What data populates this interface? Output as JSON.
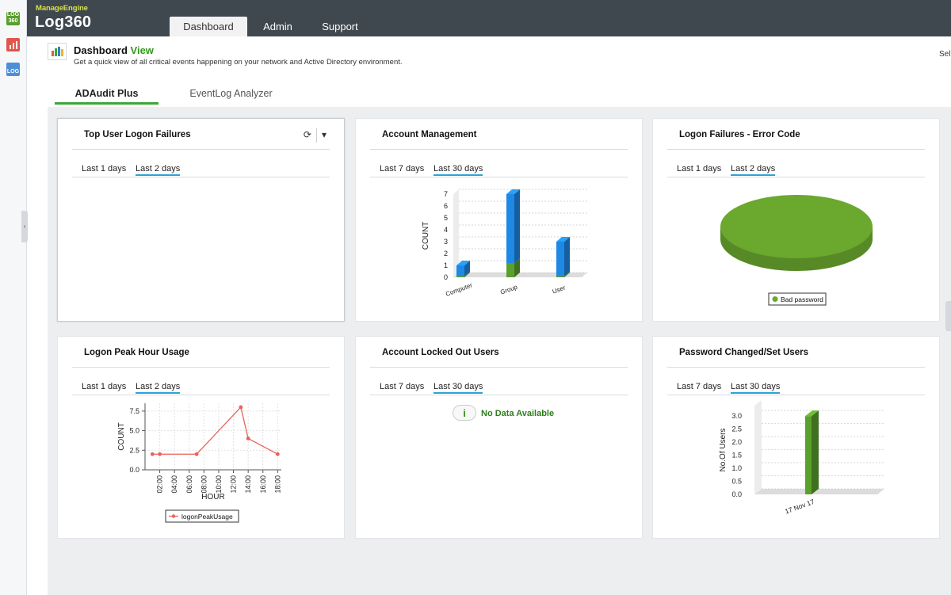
{
  "rail": {
    "items": [
      {
        "icon": "log360-icon",
        "label": "LOG 360"
      },
      {
        "icon": "report-icon",
        "label": ""
      },
      {
        "icon": "log-file-icon",
        "label": "LOG"
      }
    ]
  },
  "header": {
    "brand_small": "ManageEngine",
    "brand_big": "Log360",
    "tabs": [
      {
        "label": "Dashboard",
        "active": true
      },
      {
        "label": "Admin",
        "active": false
      },
      {
        "label": "Support",
        "active": false
      }
    ]
  },
  "page": {
    "title": "Dashboard",
    "title_accent": "View",
    "subtitle": "Get a quick view of all critical events happening on your network and Active Directory environment.",
    "right_cut": "Sel"
  },
  "subtabs": [
    {
      "label": "ADAudit Plus",
      "active": true
    },
    {
      "label": "EventLog Analyzer",
      "active": false
    }
  ],
  "colors": {
    "topbar": "#3f484f",
    "accent_green": "#3aa835",
    "link_blue": "#29a4d8",
    "bar_blue": "#1e88e5",
    "bar_green": "#5aa02c",
    "line_red": "#e8625b",
    "pie_green": "#6aa82e"
  },
  "widgets": {
    "logon_failures": {
      "title": "Top User Logon Failures",
      "periods": [
        "Last 1 days",
        "Last 2 days"
      ],
      "active_period": 1,
      "refresh_icon": "refresh-icon",
      "menu_icon": "caret-down-icon"
    },
    "account_mgmt": {
      "title": "Account Management",
      "periods": [
        "Last 7 days",
        "Last 30 days"
      ],
      "active_period": 1
    },
    "error_code": {
      "title": "Logon Failures - Error Code",
      "periods": [
        "Last 1 days",
        "Last 2 days"
      ],
      "active_period": 1
    },
    "peak_hour": {
      "title": "Logon Peak Hour Usage",
      "periods": [
        "Last 1 days",
        "Last 2 days"
      ],
      "active_period": 1
    },
    "locked_out": {
      "title": "Account Locked Out Users",
      "periods": [
        "Last 7 days",
        "Last 30 days"
      ],
      "active_period": 1,
      "no_data_icon": "i",
      "no_data_text": "No Data Available"
    },
    "pwd_changed": {
      "title": "Password Changed/Set Users",
      "periods": [
        "Last 7 days",
        "Last 30 days"
      ],
      "active_period": 1
    }
  },
  "chart_data": [
    {
      "id": "account_mgmt",
      "type": "bar",
      "stacked": true,
      "categories": [
        "Computer",
        "Group",
        "User"
      ],
      "series": [
        {
          "values": [
            0.1,
            1.2,
            0.1
          ],
          "color": "#5aa02c"
        },
        {
          "values": [
            0.9,
            5.8,
            2.9
          ],
          "color": "#1e88e5"
        }
      ],
      "ylabel": "COUNT",
      "ylim": [
        0,
        7
      ],
      "yticks": [
        0,
        1,
        2,
        3,
        4,
        5,
        6,
        7
      ]
    },
    {
      "id": "error_code",
      "type": "pie",
      "labels": [
        "Bad password"
      ],
      "values": [
        100
      ],
      "colors": [
        "#6aa82e"
      ],
      "legend": "bottom"
    },
    {
      "id": "peak_hour",
      "type": "line",
      "x": [
        1,
        2,
        7,
        13,
        14,
        18
      ],
      "series": [
        {
          "name": "logonPeakUsage",
          "values": [
            2,
            2,
            2,
            8,
            4,
            2
          ],
          "color": "#e8625b"
        }
      ],
      "xlabel": "HOUR",
      "ylabel": "COUNT",
      "xticks": [
        "02:00",
        "04:00",
        "06:00",
        "08:00",
        "10:00",
        "12:00",
        "14:00",
        "16:00",
        "18:00"
      ],
      "xtick_values": [
        2,
        4,
        6,
        8,
        10,
        12,
        14,
        16,
        18
      ],
      "xlim": [
        0,
        18.5
      ],
      "ylim": [
        0,
        8.5
      ],
      "yticks": [
        0.0,
        2.5,
        5.0,
        7.5
      ],
      "ytick_labels": [
        "0.0",
        "2.5",
        "5.0",
        "7.5"
      ],
      "legend": "bottom"
    },
    {
      "id": "pwd_changed",
      "type": "bar",
      "categories": [
        "17 Nov 17"
      ],
      "values": [
        3
      ],
      "color": "#5aa02c",
      "ylabel": "No.Of Users",
      "ylim": [
        0,
        3.4
      ],
      "yticks": [
        0.0,
        0.5,
        1.0,
        1.5,
        2.0,
        2.5,
        3.0
      ],
      "ytick_labels": [
        "0.0",
        "0.5",
        "1.0",
        "1.5",
        "2.0",
        "2.5",
        "3.0"
      ]
    }
  ]
}
